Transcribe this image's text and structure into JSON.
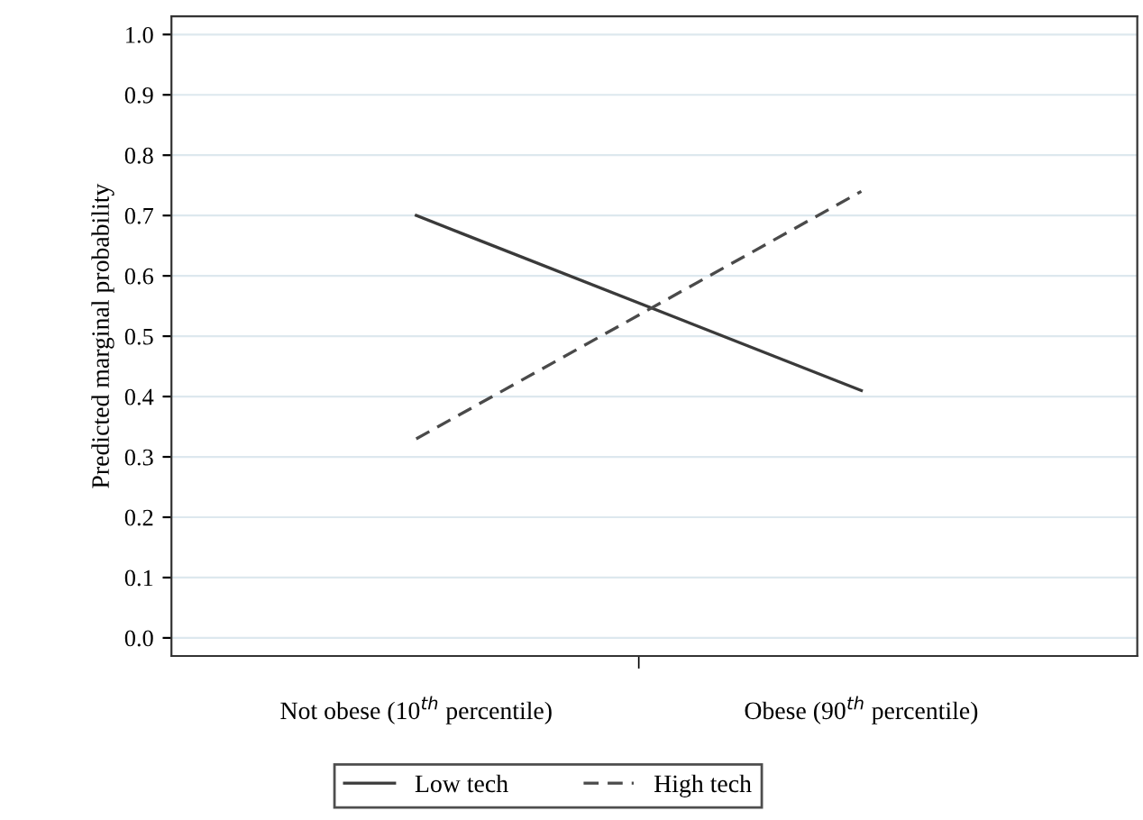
{
  "chart_data": {
    "type": "line",
    "ylabel": "Predicted marginal probability",
    "categories": [
      "Not obese (10$^{th}$ percentile)",
      "Obese (90$^{th}$ percentile)"
    ],
    "series": [
      {
        "name": "Low tech",
        "color": "#3a3a3a",
        "line_style": "solid",
        "values": [
          0.7,
          0.41
        ]
      },
      {
        "name": "High tech",
        "color": "#4a4a4a",
        "line_style": "dashed",
        "values": [
          0.33,
          0.74
        ]
      }
    ],
    "ylim": [
      -0.03,
      1.03
    ],
    "yticks": [
      {
        "value": 0,
        "label": "0.0"
      },
      0.1,
      0.2,
      0.3,
      0.4,
      0.5,
      0.6,
      0.7,
      0.8,
      0.9,
      {
        "value": 1,
        "label": "1.0"
      }
    ],
    "grid": "y",
    "legend": "bottom",
    "marker": "none"
  }
}
